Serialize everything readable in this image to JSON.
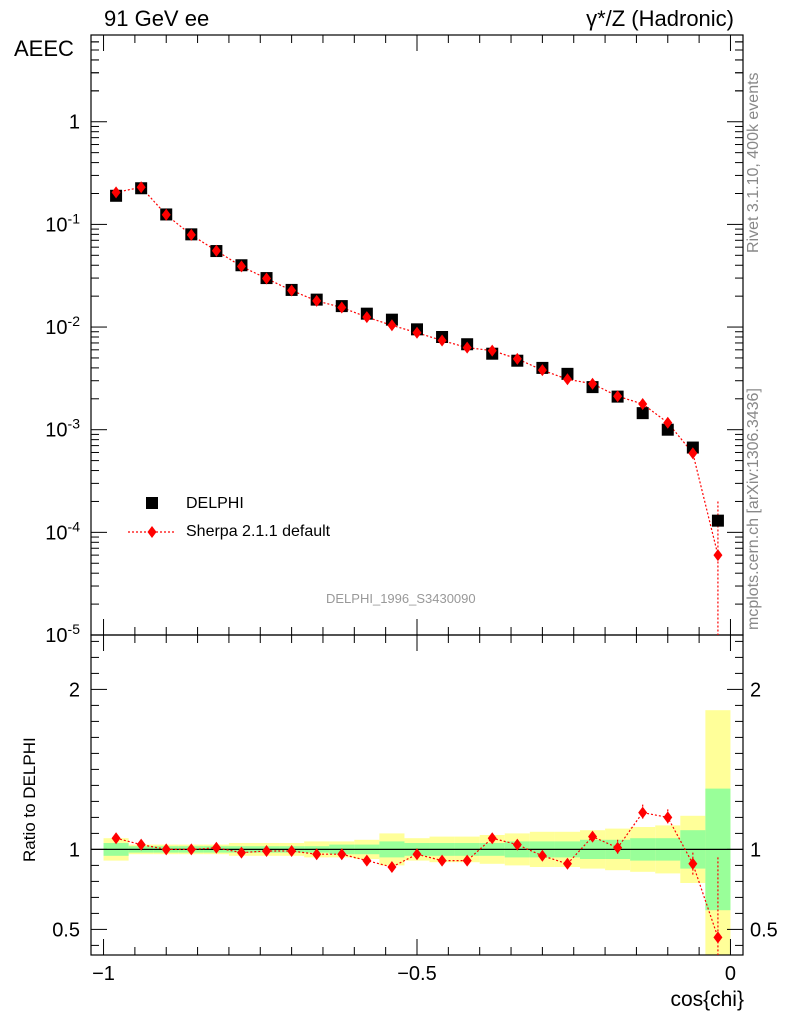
{
  "header": {
    "title_left": "91 GeV ee",
    "title_right": "γ*/Z (Hadronic)",
    "side_rivet": "Rivet 3.1.10,  400k events",
    "side_mcplots": "mcplots.cern.ch [arXiv:1306.3436]",
    "reference": "DELPHI_1996_S3430090"
  },
  "colors": {
    "data": "#000000",
    "mc": "#ff0000",
    "band_inner": "#99ff99",
    "band_outer": "#ffff99"
  },
  "chart_data": [
    {
      "type": "scatter",
      "panel": "main",
      "ylabel": "AEEC",
      "yscale": "log",
      "ylim": [
        1e-05,
        7
      ],
      "xlim": [
        -1.02,
        0.02
      ],
      "y_tick_labels": [
        "1",
        "10^{-1}",
        "10^{-2}",
        "10^{-3}",
        "10^{-4}",
        "10^{-5}"
      ],
      "legend_position": "lower-left",
      "x": [
        -0.98,
        -0.94,
        -0.9,
        -0.86,
        -0.82,
        -0.78,
        -0.74,
        -0.7,
        -0.66,
        -0.62,
        -0.58,
        -0.54,
        -0.5,
        -0.46,
        -0.42,
        -0.38,
        -0.34,
        -0.3,
        -0.26,
        -0.22,
        -0.18,
        -0.14,
        -0.1,
        -0.06,
        -0.02
      ],
      "series": [
        {
          "name": "DELPHI",
          "values": [
            0.19,
            0.225,
            0.125,
            0.08,
            0.055,
            0.04,
            0.03,
            0.023,
            0.0185,
            0.016,
            0.0135,
            0.0118,
            0.0095,
            0.008,
            0.0068,
            0.0055,
            0.0047,
            0.004,
            0.0035,
            0.0026,
            0.0021,
            0.00145,
            0.001,
            0.00067,
            0.00013
          ]
        },
        {
          "name": "Sherpa 2.1.1 default",
          "values": [
            0.205,
            0.23,
            0.124,
            0.079,
            0.0553,
            0.039,
            0.0297,
            0.0227,
            0.018,
            0.0155,
            0.0125,
            0.0104,
            0.0088,
            0.0074,
            0.0063,
            0.0059,
            0.0049,
            0.0038,
            0.0031,
            0.0028,
            0.00212,
            0.00178,
            0.00117,
            0.00059,
            6e-05
          ]
        }
      ]
    },
    {
      "type": "line",
      "panel": "ratio",
      "ylabel": "Ratio to DELPHI",
      "xlabel": "cos{chi}",
      "ylim": [
        0.34,
        2.34
      ],
      "xlim": [
        -1.02,
        0.02
      ],
      "y_tick_labels": [
        "0.5",
        "1",
        "2"
      ],
      "x_tick_labels": [
        "−1",
        "−0.5",
        "0"
      ],
      "x": [
        -0.98,
        -0.94,
        -0.9,
        -0.86,
        -0.82,
        -0.78,
        -0.74,
        -0.7,
        -0.66,
        -0.62,
        -0.58,
        -0.54,
        -0.5,
        -0.46,
        -0.42,
        -0.38,
        -0.34,
        -0.3,
        -0.26,
        -0.22,
        -0.18,
        -0.14,
        -0.1,
        -0.06,
        -0.02
      ],
      "series": [
        {
          "name": "Sherpa 2.1.1 default",
          "values": [
            1.07,
            1.03,
            1.0,
            1.0,
            1.01,
            0.98,
            0.99,
            0.99,
            0.97,
            0.97,
            0.93,
            0.89,
            0.97,
            0.93,
            0.93,
            1.07,
            1.03,
            0.96,
            0.91,
            1.08,
            1.01,
            1.23,
            1.2,
            0.91,
            0.45
          ]
        },
        {
          "name": "inner band",
          "values": [
            0.04,
            0.02,
            0.02,
            0.02,
            0.02,
            0.02,
            0.02,
            0.02,
            0.02,
            0.03,
            0.03,
            0.05,
            0.04,
            0.04,
            0.04,
            0.04,
            0.05,
            0.05,
            0.05,
            0.06,
            0.06,
            0.07,
            0.07,
            0.12,
            0.38
          ]
        },
        {
          "name": "outer band",
          "values": [
            0.07,
            0.03,
            0.03,
            0.03,
            0.03,
            0.04,
            0.04,
            0.04,
            0.05,
            0.05,
            0.06,
            0.1,
            0.07,
            0.08,
            0.08,
            0.09,
            0.1,
            0.11,
            0.11,
            0.12,
            0.13,
            0.14,
            0.15,
            0.21,
            0.87
          ]
        }
      ]
    }
  ]
}
